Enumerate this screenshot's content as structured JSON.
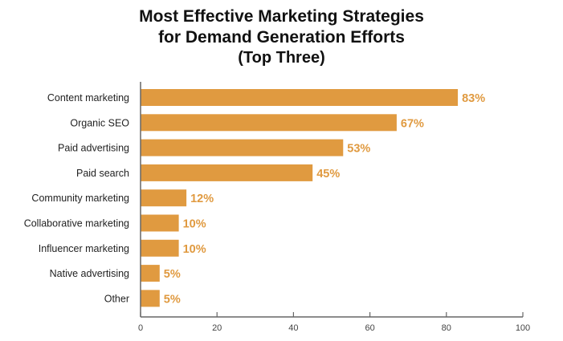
{
  "chart_data": {
    "type": "bar",
    "orientation": "horizontal",
    "title": "Most Effective Marketing Strategies",
    "title_line2": "for Demand Generation Efforts",
    "subtitle": "(Top Three)",
    "categories": [
      "Content marketing",
      "Organic SEO",
      "Paid advertising",
      "Paid search",
      "Community marketing",
      "Collaborative marketing",
      "Influencer marketing",
      "Native advertising",
      "Other"
    ],
    "values": [
      83,
      67,
      53,
      45,
      12,
      10,
      10,
      5,
      5
    ],
    "data_labels": [
      "83%",
      "67%",
      "53%",
      "45%",
      "12%",
      "10%",
      "10%",
      "5%",
      "5%"
    ],
    "xlim": [
      0,
      100
    ],
    "xticks": [
      "0",
      "20",
      "40",
      "60",
      "80",
      "100"
    ],
    "grid": false,
    "bar_color": "#E09A40",
    "label_color": "#E09A40"
  }
}
